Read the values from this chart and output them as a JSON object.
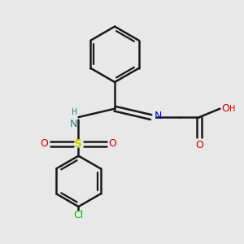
{
  "bg_color": "#e8e8e8",
  "bond_color": "#1a1a1a",
  "N_color": "#0000cc",
  "NH_color": "#2f8080",
  "S_color": "#cccc00",
  "O_color": "#cc0000",
  "Cl_color": "#00bb00",
  "H_color": "#cc0000",
  "line_width": 1.8,
  "figsize": [
    3.0,
    3.0
  ],
  "dpi": 100,
  "xlim": [
    0,
    10
  ],
  "ylim": [
    0,
    10
  ]
}
